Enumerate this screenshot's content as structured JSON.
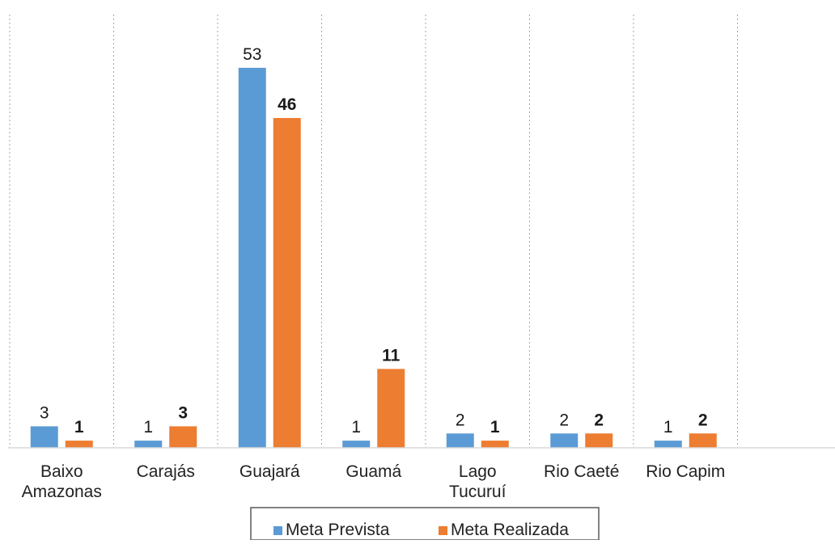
{
  "chart_data": {
    "type": "bar",
    "categories": [
      "Baixo Amazonas",
      "Carajás",
      "Guajará",
      "Guamá",
      "Lago Tucuruí",
      "Rio Caeté",
      "Rio Capim"
    ],
    "category_lines": [
      [
        "Baixo",
        "Amazonas"
      ],
      [
        "Carajás"
      ],
      [
        "Guajará"
      ],
      [
        "Guamá"
      ],
      [
        "Lago",
        "Tucuruí"
      ],
      [
        "Rio Caeté"
      ],
      [
        "Rio Capim"
      ]
    ],
    "series": [
      {
        "name": "Meta Prevista",
        "values": [
          3,
          1,
          53,
          1,
          2,
          2,
          1
        ],
        "color": "#5b9bd5",
        "label_bold": false
      },
      {
        "name": "Meta Realizada",
        "values": [
          1,
          3,
          46,
          11,
          1,
          2,
          2
        ],
        "color": "#ed7d31",
        "label_bold": true
      }
    ],
    "title": "",
    "xlabel": "",
    "ylabel": "",
    "ylim": [
      0,
      60
    ],
    "grid": "vertical dotted separators",
    "legend": "bottom-center"
  }
}
